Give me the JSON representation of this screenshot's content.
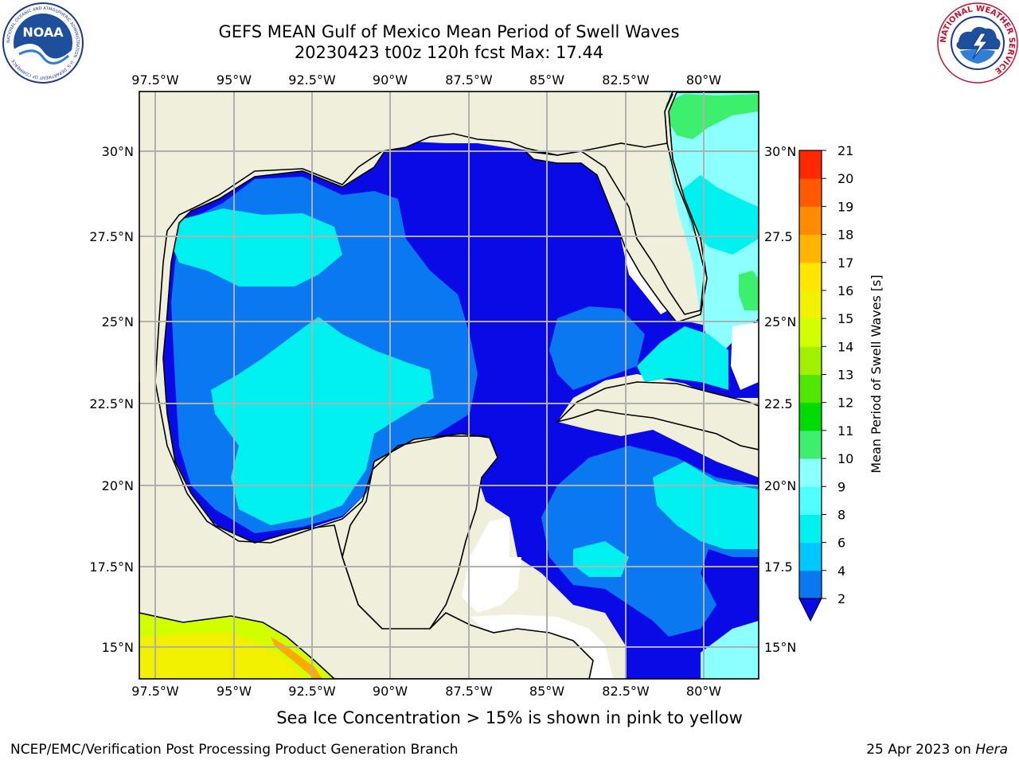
{
  "title": {
    "line1": "GEFS MEAN Gulf of Mexico Mean Period of Swell Waves",
    "line2": "20230423 t00z 120h fcst   Max: 17.44"
  },
  "logos": {
    "left": "NOAA",
    "left_ring_text": "NATIONAL OCEANIC AND ATMOSPHERIC ADMINISTRATION · U.S. DEPARTMENT OF COMMERCE",
    "right_ring_text": "NATIONAL WEATHER SERVICE"
  },
  "map": {
    "lon_labels": [
      "97.5°W",
      "95°W",
      "92.5°W",
      "90°W",
      "87.5°W",
      "85°W",
      "82.5°W",
      "80°W"
    ],
    "lat_labels_left": [
      "30°N",
      "27.5°N",
      "25°N",
      "22.5°N",
      "20°N",
      "17.5°N",
      "15°N"
    ],
    "lat_labels_right": [
      "30°N",
      "27.5",
      "25°N",
      "22.5",
      "20°N",
      "17.5",
      "15°N"
    ],
    "colors": {
      "land": "#efefdc",
      "deep_blue": "#0a0ae6",
      "mid_blue": "#0a78f0",
      "cyan": "#00f0f0",
      "light_cyan": "#8cffff",
      "green": "#32e632",
      "yellow": "#f0f000",
      "yellow_green": "#d2ff00",
      "orange": "#ffaa00"
    }
  },
  "colorbar": {
    "label": "Mean Period of Swell Waves [s]",
    "ticks": [
      "2",
      "4",
      "6",
      "8",
      "9",
      "10",
      "11",
      "12",
      "13",
      "14",
      "15",
      "16",
      "17",
      "18",
      "19",
      "20",
      "21"
    ],
    "colors": [
      "#0a78f0",
      "#00c8ff",
      "#00f0f0",
      "#50ffff",
      "#8cffff",
      "#3cf06e",
      "#00dc00",
      "#50e600",
      "#a0f000",
      "#d2ff00",
      "#f0f000",
      "#ffe600",
      "#ffb400",
      "#ff8c00",
      "#ff5a00",
      "#ff2800",
      "#ff0000"
    ],
    "extend_color": "#0a0ae6"
  },
  "footer": {
    "note": "Sea Ice Concentration > 15% is shown in pink to yellow",
    "left": "NCEP/EMC/Verification Post Processing Product Generation Branch",
    "right_prefix": "25 Apr 2023 on ",
    "right_host": "Hera"
  }
}
